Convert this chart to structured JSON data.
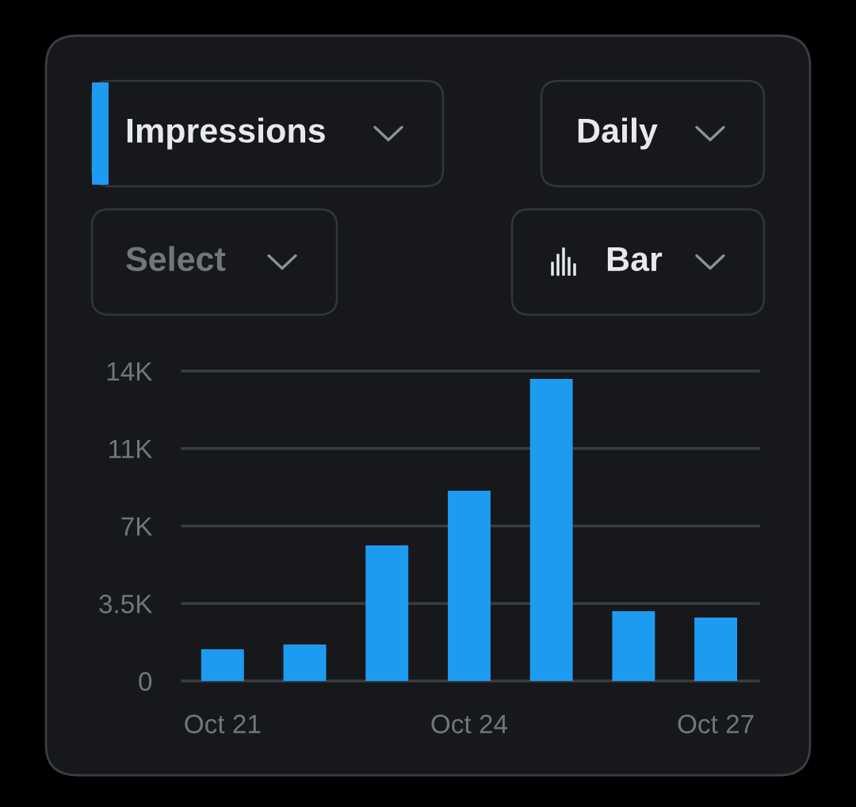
{
  "chart_data": {
    "type": "bar",
    "categories": [
      "Oct 21",
      null,
      null,
      "Oct 24",
      null,
      null,
      "Oct 27"
    ],
    "values": [
      1.43,
      1.65,
      6.12,
      8.59,
      13.64,
      3.15,
      2.86
    ],
    "color": "#1d9bf0",
    "ylim": [
      0,
      14
    ],
    "yticks": [
      {
        "value": 0,
        "label": "0"
      },
      {
        "value": 3.5,
        "label": "3.5K"
      },
      {
        "value": 7,
        "label": "7K"
      },
      {
        "value": 10.5,
        "label": "11K"
      },
      {
        "value": 14,
        "label": "14K"
      }
    ],
    "grid": "y",
    "annotations": [
      "Impressions",
      "Daily",
      "Select",
      "Bar"
    ]
  }
}
